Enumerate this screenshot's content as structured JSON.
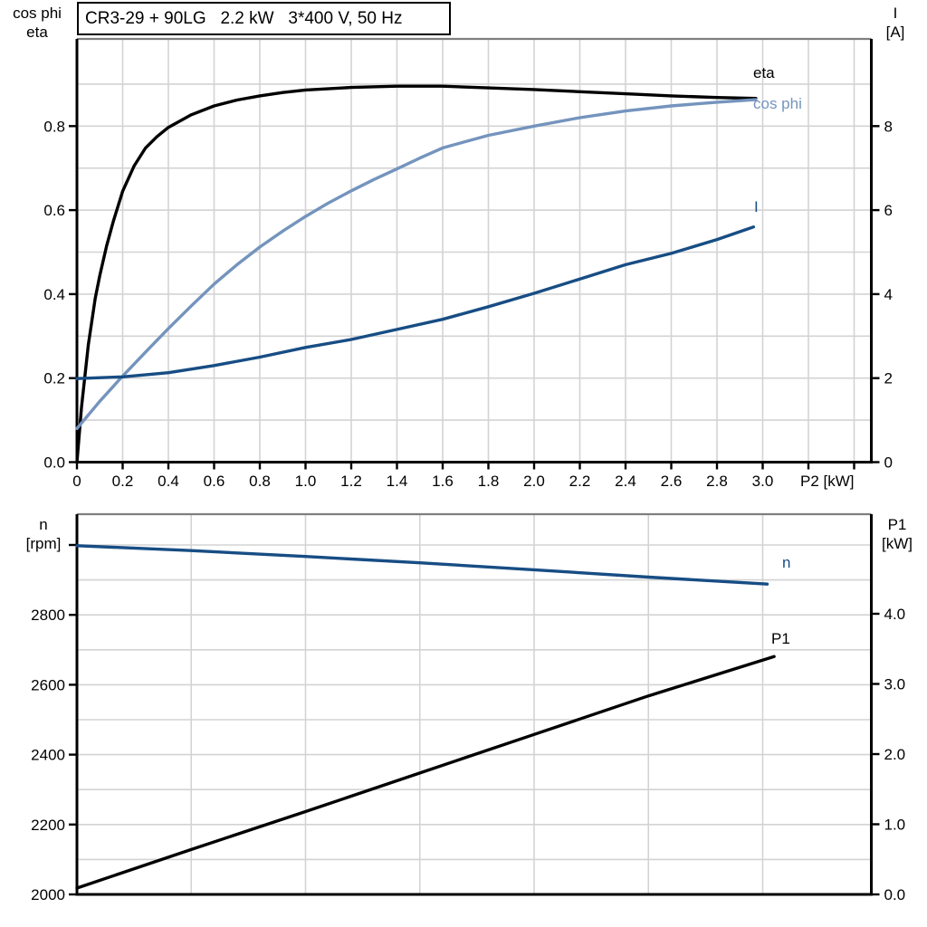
{
  "title": "CR3-29 + 90LG   2.2 kW   3*400 V, 50 Hz",
  "colors": {
    "black": "#000000",
    "light_blue": "#7494bd",
    "dark_blue": "#174d84",
    "grid": "#d3d3d3",
    "frame_gray": "#7f7f7f"
  },
  "chart_data": [
    {
      "type": "line",
      "title": "CR3-29 + 90LG   2.2 kW   3*400 V, 50 Hz",
      "x_axis": {
        "label": "P2 [kW]",
        "min": 0,
        "max": 3.48,
        "gridlines": [
          0.2,
          0.4,
          0.6,
          0.8,
          1.0,
          1.2,
          1.4,
          1.6,
          1.8,
          2.0,
          2.2,
          2.4,
          2.6,
          2.8,
          3.0,
          3.2,
          3.4
        ],
        "ticks": [
          {
            "v": 0,
            "label": "0"
          },
          {
            "v": 0.2,
            "label": "0.2"
          },
          {
            "v": 0.4,
            "label": "0.4"
          },
          {
            "v": 0.6,
            "label": "0.6"
          },
          {
            "v": 0.8,
            "label": "0.8"
          },
          {
            "v": 1.0,
            "label": "1.0"
          },
          {
            "v": 1.2,
            "label": "1.2"
          },
          {
            "v": 1.4,
            "label": "1.4"
          },
          {
            "v": 1.6,
            "label": "1.6"
          },
          {
            "v": 1.8,
            "label": "1.8"
          },
          {
            "v": 2.0,
            "label": "2.0"
          },
          {
            "v": 2.2,
            "label": "2.2"
          },
          {
            "v": 2.4,
            "label": "2.4"
          },
          {
            "v": 2.6,
            "label": "2.6"
          },
          {
            "v": 2.8,
            "label": "2.8"
          },
          {
            "v": 3.0,
            "label": "3.0"
          },
          {
            "v": 3.2
          },
          {
            "v": 3.4
          }
        ]
      },
      "left_axis": {
        "label_lines": [
          "cos phi",
          "eta"
        ],
        "min": 0,
        "max": 1.0,
        "gridlines": [
          0.1,
          0.2,
          0.3,
          0.4,
          0.5,
          0.6,
          0.7,
          0.8,
          0.9
        ],
        "ticks": [
          {
            "v": 0.0,
            "label": "0.0"
          },
          {
            "v": 0.2,
            "label": "0.2"
          },
          {
            "v": 0.4,
            "label": "0.4"
          },
          {
            "v": 0.6,
            "label": "0.6"
          },
          {
            "v": 0.8,
            "label": "0.8"
          }
        ]
      },
      "right_axis": {
        "label_lines": [
          "I",
          "[A]"
        ],
        "min": 0,
        "max": 10,
        "ticks": [
          {
            "v": 0,
            "label": "0"
          },
          {
            "v": 2,
            "label": "2"
          },
          {
            "v": 4,
            "label": "4"
          },
          {
            "v": 6,
            "label": "6"
          },
          {
            "v": 8,
            "label": "8"
          }
        ]
      },
      "series": [
        {
          "id": "eta-curve",
          "label": "eta",
          "axis": "left",
          "color": "#000000",
          "points": [
            [
              0,
              0
            ],
            [
              0.02,
              0.13
            ],
            [
              0.05,
              0.28
            ],
            [
              0.08,
              0.39
            ],
            [
              0.1,
              0.445
            ],
            [
              0.13,
              0.515
            ],
            [
              0.16,
              0.575
            ],
            [
              0.2,
              0.645
            ],
            [
              0.25,
              0.705
            ],
            [
              0.3,
              0.748
            ],
            [
              0.35,
              0.775
            ],
            [
              0.4,
              0.797
            ],
            [
              0.5,
              0.827
            ],
            [
              0.6,
              0.848
            ],
            [
              0.7,
              0.862
            ],
            [
              0.8,
              0.872
            ],
            [
              0.9,
              0.88
            ],
            [
              1.0,
              0.886
            ],
            [
              1.2,
              0.892
            ],
            [
              1.4,
              0.895
            ],
            [
              1.6,
              0.895
            ],
            [
              1.8,
              0.891
            ],
            [
              2.0,
              0.887
            ],
            [
              2.2,
              0.882
            ],
            [
              2.4,
              0.877
            ],
            [
              2.6,
              0.872
            ],
            [
              2.8,
              0.868
            ],
            [
              2.97,
              0.866
            ]
          ]
        },
        {
          "id": "cos-phi-curve",
          "label": "cos phi",
          "axis": "left",
          "color": "#7494bd",
          "points": [
            [
              0,
              0.08
            ],
            [
              0.1,
              0.145
            ],
            [
              0.2,
              0.205
            ],
            [
              0.3,
              0.262
            ],
            [
              0.4,
              0.318
            ],
            [
              0.5,
              0.372
            ],
            [
              0.6,
              0.424
            ],
            [
              0.7,
              0.47
            ],
            [
              0.8,
              0.512
            ],
            [
              0.9,
              0.55
            ],
            [
              1.0,
              0.585
            ],
            [
              1.1,
              0.617
            ],
            [
              1.2,
              0.646
            ],
            [
              1.3,
              0.673
            ],
            [
              1.4,
              0.698
            ],
            [
              1.5,
              0.724
            ],
            [
              1.6,
              0.748
            ],
            [
              1.8,
              0.778
            ],
            [
              2.0,
              0.8
            ],
            [
              2.2,
              0.82
            ],
            [
              2.4,
              0.836
            ],
            [
              2.6,
              0.848
            ],
            [
              2.8,
              0.857
            ],
            [
              2.97,
              0.863
            ]
          ]
        },
        {
          "id": "current-curve",
          "label": "I",
          "axis": "right",
          "color": "#174d84",
          "points": [
            [
              0,
              1.99
            ],
            [
              0.2,
              2.03
            ],
            [
              0.4,
              2.13
            ],
            [
              0.6,
              2.3
            ],
            [
              0.8,
              2.5
            ],
            [
              1.0,
              2.73
            ],
            [
              1.2,
              2.92
            ],
            [
              1.4,
              3.16
            ],
            [
              1.6,
              3.4
            ],
            [
              1.8,
              3.7
            ],
            [
              2.0,
              4.02
            ],
            [
              2.2,
              4.36
            ],
            [
              2.4,
              4.7
            ],
            [
              2.6,
              4.97
            ],
            [
              2.8,
              5.3
            ],
            [
              2.96,
              5.6
            ]
          ]
        }
      ]
    },
    {
      "type": "line",
      "x_axis": {
        "label": "",
        "min": 0,
        "max": 3.48,
        "gridlines": [
          0.5,
          1.0,
          1.5,
          2.0,
          2.5,
          3.0
        ],
        "ticks": []
      },
      "left_axis": {
        "label_lines": [
          "n",
          "[rpm]"
        ],
        "min": 2000,
        "max": 3088,
        "gridlines": [
          2100,
          2200,
          2300,
          2400,
          2500,
          2600,
          2700,
          2800,
          2900,
          3000
        ],
        "ticks": [
          {
            "v": 2000,
            "label": "2000"
          },
          {
            "v": 2200,
            "label": "2200"
          },
          {
            "v": 2400,
            "label": "2400"
          },
          {
            "v": 2600,
            "label": "2600"
          },
          {
            "v": 2800,
            "label": "2800"
          },
          {
            "v": 3000
          }
        ]
      },
      "right_axis": {
        "label_lines": [
          "P1",
          "[kW]"
        ],
        "min": 0,
        "max": 5.4,
        "ticks": [
          {
            "v": 0.0,
            "label": "0.0"
          },
          {
            "v": 1.0,
            "label": "1.0"
          },
          {
            "v": 2.0,
            "label": "2.0"
          },
          {
            "v": 3.0,
            "label": "3.0"
          },
          {
            "v": 4.0,
            "label": "4.0"
          }
        ]
      },
      "series": [
        {
          "id": "speed-curve",
          "label": "n",
          "axis": "left",
          "color": "#174d84",
          "points": [
            [
              0,
              2998
            ],
            [
              0.5,
              2984
            ],
            [
              1.0,
              2967
            ],
            [
              1.5,
              2949
            ],
            [
              2.0,
              2929
            ],
            [
              2.5,
              2908
            ],
            [
              3.02,
              2888
            ]
          ]
        },
        {
          "id": "p1-curve",
          "label": "P1",
          "axis": "right",
          "color": "#000000",
          "points": [
            [
              0,
              0.09
            ],
            [
              0.5,
              0.64
            ],
            [
              1.0,
              1.18
            ],
            [
              1.5,
              1.73
            ],
            [
              2.0,
              2.28
            ],
            [
              2.5,
              2.83
            ],
            [
              3.05,
              3.39
            ]
          ]
        }
      ]
    }
  ]
}
